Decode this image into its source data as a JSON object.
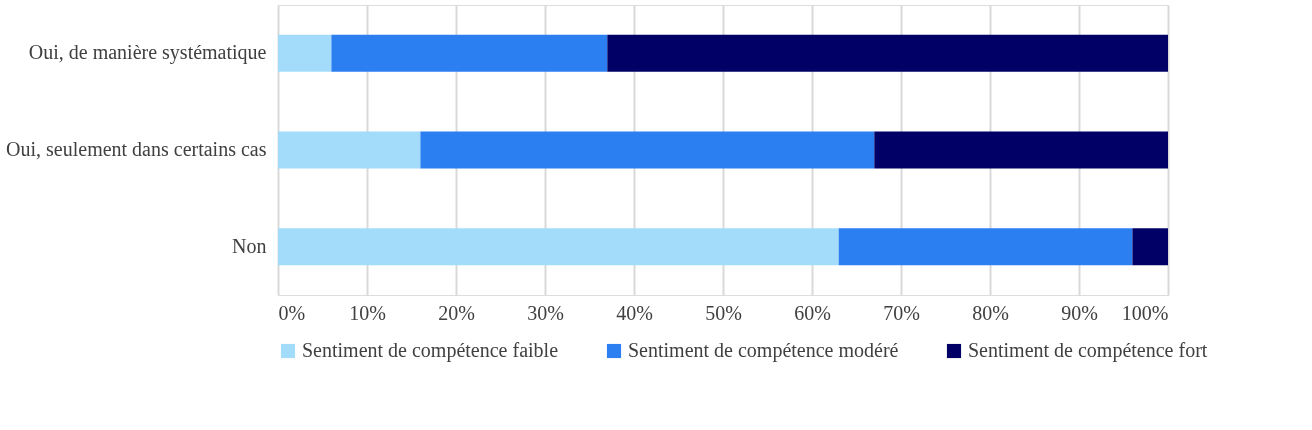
{
  "chart_data": {
    "type": "bar",
    "orientation": "horizontal",
    "stacked": true,
    "categories": [
      "Oui, de manière systématique",
      "Oui, seulement dans certains cas",
      "Non"
    ],
    "series": [
      {
        "name": "Sentiment de compétence faible",
        "color": "#a3dcfb",
        "values": [
          6,
          16,
          63
        ]
      },
      {
        "name": "Sentiment de compétence modéré",
        "color": "#2b7ff0",
        "values": [
          31,
          51,
          33
        ]
      },
      {
        "name": "Sentiment de compétence fort",
        "color": "#000066",
        "values": [
          63,
          33,
          4
        ]
      }
    ],
    "xlim": [
      0,
      100
    ],
    "xticks": [
      {
        "value": 0,
        "label": "0%"
      },
      {
        "value": 10,
        "label": "10%"
      },
      {
        "value": 20,
        "label": "20%"
      },
      {
        "value": 30,
        "label": "30%"
      },
      {
        "value": 40,
        "label": "40%"
      },
      {
        "value": 50,
        "label": "50%"
      },
      {
        "value": 60,
        "label": "60%"
      },
      {
        "value": 70,
        "label": "70%"
      },
      {
        "value": 80,
        "label": "80%"
      },
      {
        "value": 90,
        "label": "90%"
      },
      {
        "value": 100,
        "label": "100%"
      }
    ],
    "grid": "x",
    "legend": "bottom"
  }
}
